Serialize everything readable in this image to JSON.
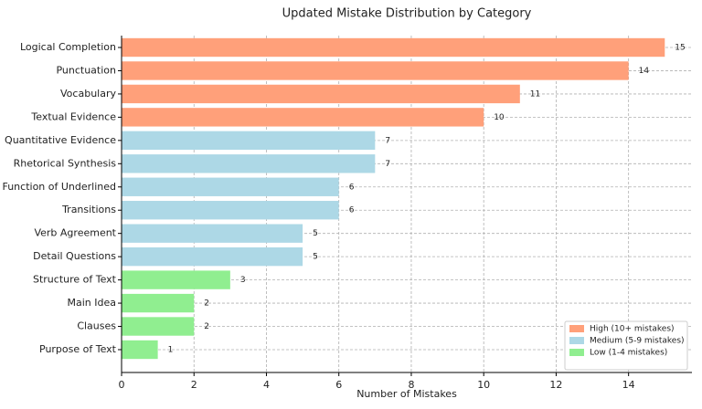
{
  "chart_data": {
    "type": "bar",
    "orientation": "horizontal",
    "title": "Updated Mistake Distribution by Category",
    "xlabel": "Number of Mistakes",
    "categories": [
      "Logical Completion",
      "Punctuation",
      "Vocabulary",
      "Textual Evidence",
      "Quantitative Evidence",
      "Rhetorical Synthesis",
      "Function of Underlined",
      "Transitions",
      "Verb Agreement",
      "Detail Questions",
      "Structure of Text",
      "Main Idea",
      "Clauses",
      "Purpose of Text"
    ],
    "values": [
      15,
      14,
      11,
      10,
      7,
      7,
      6,
      6,
      5,
      5,
      3,
      2,
      2,
      1
    ],
    "colors": [
      "#FFA07A",
      "#FFA07A",
      "#FFA07A",
      "#FFA07A",
      "#ADD8E6",
      "#ADD8E6",
      "#ADD8E6",
      "#ADD8E6",
      "#ADD8E6",
      "#ADD8E6",
      "#90EE90",
      "#90EE90",
      "#90EE90",
      "#90EE90"
    ],
    "legend": [
      {
        "name": "High (10+ mistakes)",
        "color": "#FFA07A"
      },
      {
        "name": "Medium (5-9 mistakes)",
        "color": "#ADD8E6"
      },
      {
        "name": "Low (1-4 mistakes)",
        "color": "#90EE90"
      }
    ],
    "legend_loc": "lower right",
    "xlim": [
      0,
      15.75
    ],
    "xticks": [
      0,
      2,
      4,
      6,
      8,
      10,
      12,
      14
    ],
    "grid": true
  }
}
